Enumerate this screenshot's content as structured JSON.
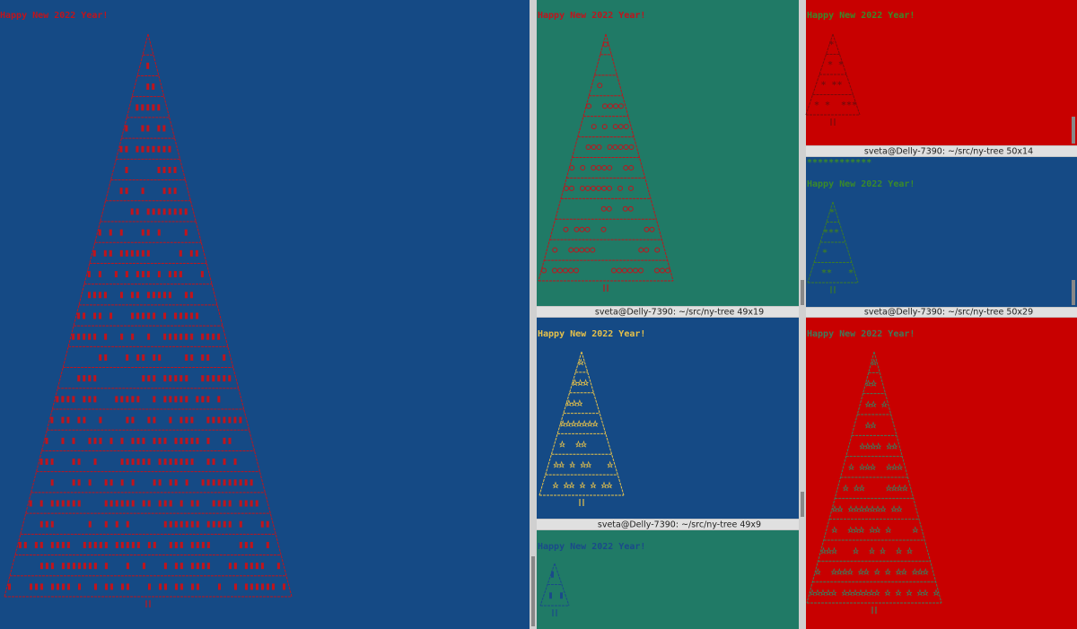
{
  "panes": [
    {
      "greeting": "Happy New 2022 Year!"
    },
    {
      "greeting": "Happy New 2022 Year!"
    },
    {
      "greeting": "Happy New 2022 Year!"
    },
    {
      "greeting": "Happy New 2022 Year!",
      "stars": "************"
    },
    {
      "greeting": "Happy New 2022 Year!"
    },
    {
      "greeting": "Happy New 2022 Year!"
    },
    {
      "greeting": "Happy New 2022 Year!"
    }
  ],
  "title_bars": [
    "sveta@Delly-7390: ~/src/ny-tree 50x14",
    "sveta@Delly-7390: ~/src/ny-tree 49x19",
    "sveta@Delly-7390: ~/src/ny-tree 50x29",
    "sveta@Delly-7390: ~/src/ny-tree 49x9"
  ]
}
